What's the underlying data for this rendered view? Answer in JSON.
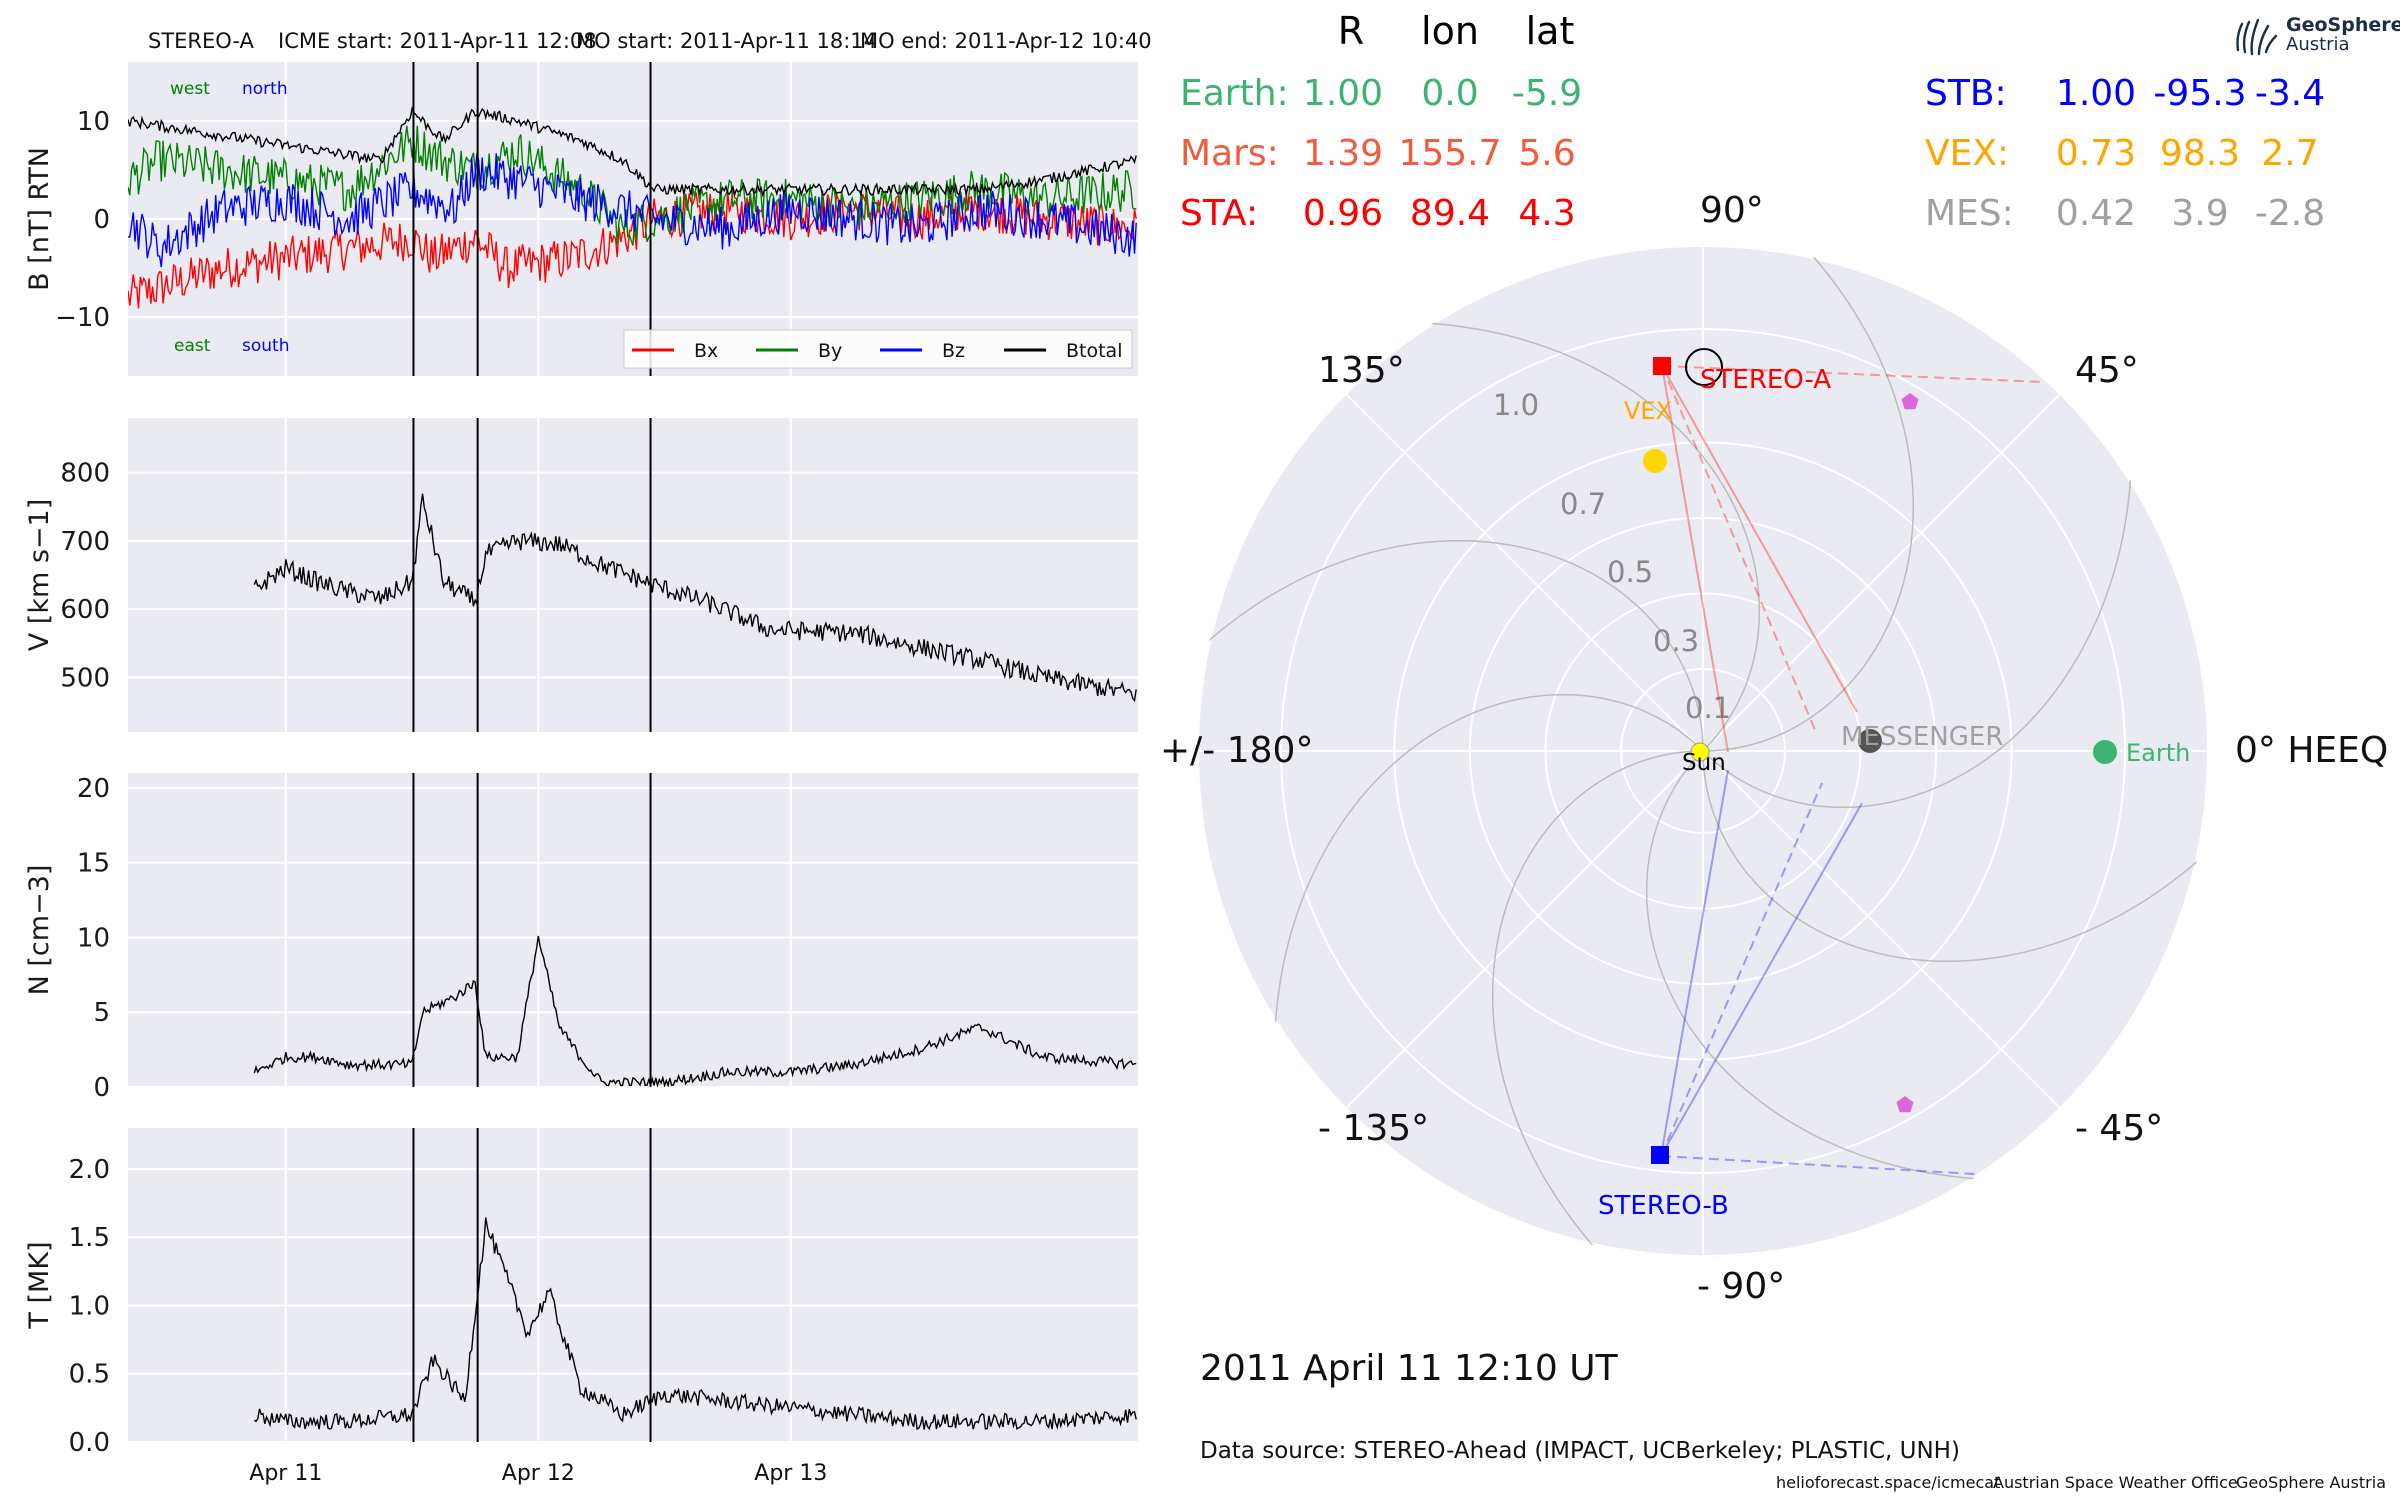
{
  "header": {
    "spacecraft": "STEREO-A",
    "icme_start": "ICME start: 2011-Apr-11 12:08",
    "mo_start": "MO start: 2011-Apr-11 18:14",
    "mo_end": "MO end: 2011-Apr-12 10:40"
  },
  "timestamp": "2011 April 11  12:10 UT",
  "data_source": "Data source: STEREO-Ahead (IMPACT, UCBerkeley; PLASTIC, UNH)",
  "footer": {
    "url": "helioforecast.space/icmecat",
    "office": "Austrian Space Weather Office",
    "org": "GeoSphere Austria"
  },
  "logo": {
    "name": "GeoSphere",
    "sub": "Austria",
    "icon": "geosphere-logo-icon"
  },
  "positions_table": {
    "headers": [
      "R",
      "lon",
      "lat"
    ],
    "left": [
      {
        "name": "Earth:",
        "R": "1.00",
        "lon": "0.0",
        "lat": "-5.9",
        "color": "#3cb371"
      },
      {
        "name": "Mars:",
        "R": "1.39",
        "lon": "155.7",
        "lat": "5.6",
        "color": "#f25c3c"
      },
      {
        "name": "STA:",
        "R": "0.96",
        "lon": "89.4",
        "lat": "4.3",
        "color": "#ff0000"
      }
    ],
    "right": [
      {
        "name": "STB:",
        "R": "1.00",
        "lon": "-95.3",
        "lat": "-3.4",
        "color": "#0000ff"
      },
      {
        "name": "VEX:",
        "R": "0.73",
        "lon": "98.3",
        "lat": "2.7",
        "color": "#ffa500"
      },
      {
        "name": "MES:",
        "R": "0.42",
        "lon": "3.9",
        "lat": "-2.8",
        "color": "#a0a0a0"
      }
    ]
  },
  "polar_labels": {
    "a90": "90°",
    "a45": "45°",
    "a135": "135°",
    "a0": "0° HEEQ",
    "a180": "+/- 180°",
    "am45": "- 45°",
    "am135": "- 135°",
    "am90": "- 90°",
    "r_ticks": [
      "0.1",
      "0.3",
      "0.5",
      "0.7",
      "1.0"
    ]
  },
  "bodies": {
    "sun": "Sun",
    "earth": "Earth",
    "messenger": "MESSENGER",
    "vex": "VEX",
    "stereo_a": "STEREO-A",
    "stereo_b": "STEREO-B"
  },
  "colors": {
    "panel_bg": "#eaeaf2",
    "bx": "#ff0000",
    "by": "#008000",
    "bz": "#0000ff",
    "btotal": "#000000",
    "sta": "#ff0000",
    "stb": "#0000ff",
    "earth": "#3cb371",
    "vex": "#ffd700",
    "vex_label": "#ffa500",
    "messenger": "#555555",
    "sun": "#ffff00",
    "pentagon": "#dd66dd"
  },
  "chart_data": [
    {
      "type": "line",
      "panel": "magnetic_field",
      "ylabel": "B [nT] RTN",
      "ylim": [
        -16,
        16
      ],
      "yticks": [
        "10",
        "0",
        "−10"
      ],
      "ytick_values": [
        10,
        0,
        -10
      ],
      "xlim_days": [
        "2011-04-10T09:00",
        "2011-04-14T09:00"
      ],
      "xtick_labels": [
        "Apr 11",
        "Apr 12",
        "Apr 13"
      ],
      "xtick_dates": [
        "2011-04-11T00:00",
        "2011-04-12T00:00",
        "2011-04-13T00:00"
      ],
      "annotations": {
        "west": "west",
        "north": "north",
        "east": "east",
        "south": "south"
      },
      "legend": {
        "position": "lower-right",
        "entries": [
          "Bx",
          "By",
          "Bz",
          "Btotal"
        ]
      },
      "series": [
        {
          "name": "Bx",
          "points": [
            [
              "2011-04-10T09:00",
              -8
            ],
            [
              "2011-04-10T12:00",
              -7
            ],
            [
              "2011-04-10T18:00",
              -5
            ],
            [
              "2011-04-11T00:00",
              -4
            ],
            [
              "2011-04-11T06:00",
              -3
            ],
            [
              "2011-04-11T12:00",
              -2
            ],
            [
              "2011-04-11T14:00",
              -4
            ],
            [
              "2011-04-11T18:00",
              -2
            ],
            [
              "2011-04-11T21:00",
              -5
            ],
            [
              "2011-04-12T03:00",
              -4
            ],
            [
              "2011-04-12T08:00",
              -2
            ],
            [
              "2011-04-12T11:00",
              0
            ],
            [
              "2011-04-12T18:00",
              1
            ],
            [
              "2011-04-13T00:00",
              0
            ],
            [
              "2011-04-13T06:00",
              1
            ],
            [
              "2011-04-13T12:00",
              0
            ],
            [
              "2011-04-13T18:00",
              1
            ],
            [
              "2011-04-14T00:00",
              0
            ],
            [
              "2011-04-14T09:00",
              -1
            ]
          ]
        },
        {
          "name": "By",
          "points": [
            [
              "2011-04-10T09:00",
              4
            ],
            [
              "2011-04-10T12:00",
              6
            ],
            [
              "2011-04-10T18:00",
              5
            ],
            [
              "2011-04-11T00:00",
              4
            ],
            [
              "2011-04-11T06:00",
              3
            ],
            [
              "2011-04-11T12:00",
              8
            ],
            [
              "2011-04-11T15:00",
              6
            ],
            [
              "2011-04-11T18:00",
              5
            ],
            [
              "2011-04-11T22:00",
              7
            ],
            [
              "2011-04-12T04:00",
              3
            ],
            [
              "2011-04-12T08:00",
              -1
            ],
            [
              "2011-04-12T11:00",
              0
            ],
            [
              "2011-04-12T18:00",
              2
            ],
            [
              "2011-04-13T00:00",
              2
            ],
            [
              "2011-04-13T06:00",
              1
            ],
            [
              "2011-04-13T12:00",
              2
            ],
            [
              "2011-04-13T18:00",
              3
            ],
            [
              "2011-04-14T00:00",
              2
            ],
            [
              "2011-04-14T09:00",
              3
            ]
          ]
        },
        {
          "name": "Bz",
          "points": [
            [
              "2011-04-10T09:00",
              0
            ],
            [
              "2011-04-10T12:00",
              -3
            ],
            [
              "2011-04-10T18:00",
              1
            ],
            [
              "2011-04-11T00:00",
              2
            ],
            [
              "2011-04-11T06:00",
              0
            ],
            [
              "2011-04-11T12:00",
              3
            ],
            [
              "2011-04-11T16:00",
              1
            ],
            [
              "2011-04-11T18:00",
              5
            ],
            [
              "2011-04-11T22:00",
              4
            ],
            [
              "2011-04-12T04:00",
              2
            ],
            [
              "2011-04-12T08:00",
              1
            ],
            [
              "2011-04-12T11:00",
              0
            ],
            [
              "2011-04-12T18:00",
              -1
            ],
            [
              "2011-04-13T00:00",
              1
            ],
            [
              "2011-04-13T06:00",
              0
            ],
            [
              "2011-04-13T12:00",
              -1
            ],
            [
              "2011-04-13T18:00",
              1
            ],
            [
              "2011-04-14T00:00",
              0
            ],
            [
              "2011-04-14T09:00",
              -2
            ]
          ]
        },
        {
          "name": "Btotal",
          "points": [
            [
              "2011-04-10T09:00",
              10
            ],
            [
              "2011-04-10T15:00",
              9
            ],
            [
              "2011-04-10T21:00",
              8
            ],
            [
              "2011-04-11T03:00",
              7
            ],
            [
              "2011-04-11T09:00",
              6
            ],
            [
              "2011-04-11T12:00",
              11
            ],
            [
              "2011-04-11T15:00",
              8
            ],
            [
              "2011-04-11T18:00",
              11
            ],
            [
              "2011-04-11T22:00",
              10
            ],
            [
              "2011-04-12T04:00",
              8
            ],
            [
              "2011-04-12T08:00",
              6
            ],
            [
              "2011-04-12T11:00",
              3
            ],
            [
              "2011-04-12T18:00",
              3
            ],
            [
              "2011-04-13T00:00",
              3
            ],
            [
              "2011-04-13T06:00",
              3
            ],
            [
              "2011-04-13T12:00",
              3
            ],
            [
              "2011-04-13T18:00",
              3
            ],
            [
              "2011-04-14T00:00",
              4
            ],
            [
              "2011-04-14T09:00",
              6
            ]
          ]
        }
      ]
    },
    {
      "type": "line",
      "panel": "speed",
      "ylabel": "V [km s−1]",
      "ylim": [
        420,
        880
      ],
      "yticks": [
        "800",
        "700",
        "600",
        "500"
      ],
      "ytick_values": [
        800,
        700,
        600,
        500
      ],
      "series": [
        {
          "name": "V",
          "points": [
            [
              "2011-04-10T21:00",
              630
            ],
            [
              "2011-04-11T00:00",
              660
            ],
            [
              "2011-04-11T03:00",
              640
            ],
            [
              "2011-04-11T06:00",
              625
            ],
            [
              "2011-04-11T09:00",
              615
            ],
            [
              "2011-04-11T12:00",
              640
            ],
            [
              "2011-04-11T13:00",
              760
            ],
            [
              "2011-04-11T15:00",
              640
            ],
            [
              "2011-04-11T18:00",
              610
            ],
            [
              "2011-04-11T19:00",
              680
            ],
            [
              "2011-04-11T22:00",
              700
            ],
            [
              "2011-04-12T02:00",
              695
            ],
            [
              "2011-04-12T06:00",
              665
            ],
            [
              "2011-04-12T11:00",
              635
            ],
            [
              "2011-04-12T16:00",
              610
            ],
            [
              "2011-04-12T22:00",
              570
            ],
            [
              "2011-04-13T06:00",
              565
            ],
            [
              "2011-04-13T12:00",
              545
            ],
            [
              "2011-04-13T18:00",
              525
            ],
            [
              "2011-04-14T00:00",
              500
            ],
            [
              "2011-04-14T09:00",
              475
            ]
          ]
        }
      ]
    },
    {
      "type": "line",
      "panel": "density",
      "ylabel": "N [cm−3]",
      "ylim": [
        0,
        21
      ],
      "yticks": [
        "20",
        "15",
        "10",
        "5",
        "0"
      ],
      "ytick_values": [
        20,
        15,
        10,
        5,
        0
      ],
      "series": [
        {
          "name": "N",
          "points": [
            [
              "2011-04-10T21:00",
              1
            ],
            [
              "2011-04-11T00:00",
              2
            ],
            [
              "2011-04-11T03:00",
              2
            ],
            [
              "2011-04-11T06:00",
              1.5
            ],
            [
              "2011-04-11T12:00",
              1.5
            ],
            [
              "2011-04-11T13:00",
              5
            ],
            [
              "2011-04-11T16:00",
              6
            ],
            [
              "2011-04-11T18:00",
              7
            ],
            [
              "2011-04-11T19:00",
              2
            ],
            [
              "2011-04-11T22:00",
              2
            ],
            [
              "2011-04-12T00:00",
              10
            ],
            [
              "2011-04-12T02:00",
              4
            ],
            [
              "2011-04-12T04:00",
              2
            ],
            [
              "2011-04-12T06:00",
              0.3
            ],
            [
              "2011-04-12T12:00",
              0.3
            ],
            [
              "2011-04-12T18:00",
              1
            ],
            [
              "2011-04-13T00:00",
              1
            ],
            [
              "2011-04-13T06:00",
              1.5
            ],
            [
              "2011-04-13T12:00",
              2.5
            ],
            [
              "2011-04-13T18:00",
              4
            ],
            [
              "2011-04-14T00:00",
              2
            ],
            [
              "2011-04-14T09:00",
              1.5
            ]
          ]
        }
      ]
    },
    {
      "type": "line",
      "panel": "temperature",
      "ylabel": "T [MK]",
      "ylim": [
        0,
        2.3
      ],
      "yticks": [
        "2.0",
        "1.5",
        "1.0",
        "0.5",
        "0.0"
      ],
      "ytick_values": [
        2.0,
        1.5,
        1.0,
        0.5,
        0.0
      ],
      "series": [
        {
          "name": "T",
          "points": [
            [
              "2011-04-10T21:00",
              0.2
            ],
            [
              "2011-04-11T00:00",
              0.15
            ],
            [
              "2011-04-11T06:00",
              0.15
            ],
            [
              "2011-04-11T12:00",
              0.2
            ],
            [
              "2011-04-11T14:00",
              0.6
            ],
            [
              "2011-04-11T17:00",
              0.3
            ],
            [
              "2011-04-11T19:00",
              1.6
            ],
            [
              "2011-04-11T21:00",
              1.2
            ],
            [
              "2011-04-11T23:00",
              0.8
            ],
            [
              "2011-04-12T01:00",
              1.1
            ],
            [
              "2011-04-12T04:00",
              0.4
            ],
            [
              "2011-04-12T08:00",
              0.2
            ],
            [
              "2011-04-12T12:00",
              0.35
            ],
            [
              "2011-04-12T18:00",
              0.3
            ],
            [
              "2011-04-13T00:00",
              0.25
            ],
            [
              "2011-04-13T06:00",
              0.2
            ],
            [
              "2011-04-13T12:00",
              0.15
            ],
            [
              "2011-04-13T18:00",
              0.15
            ],
            [
              "2011-04-14T00:00",
              0.15
            ],
            [
              "2011-04-14T09:00",
              0.2
            ]
          ]
        }
      ]
    }
  ],
  "event_markers": [
    "2011-04-11T12:08",
    "2011-04-11T18:14",
    "2011-04-12T10:40"
  ]
}
